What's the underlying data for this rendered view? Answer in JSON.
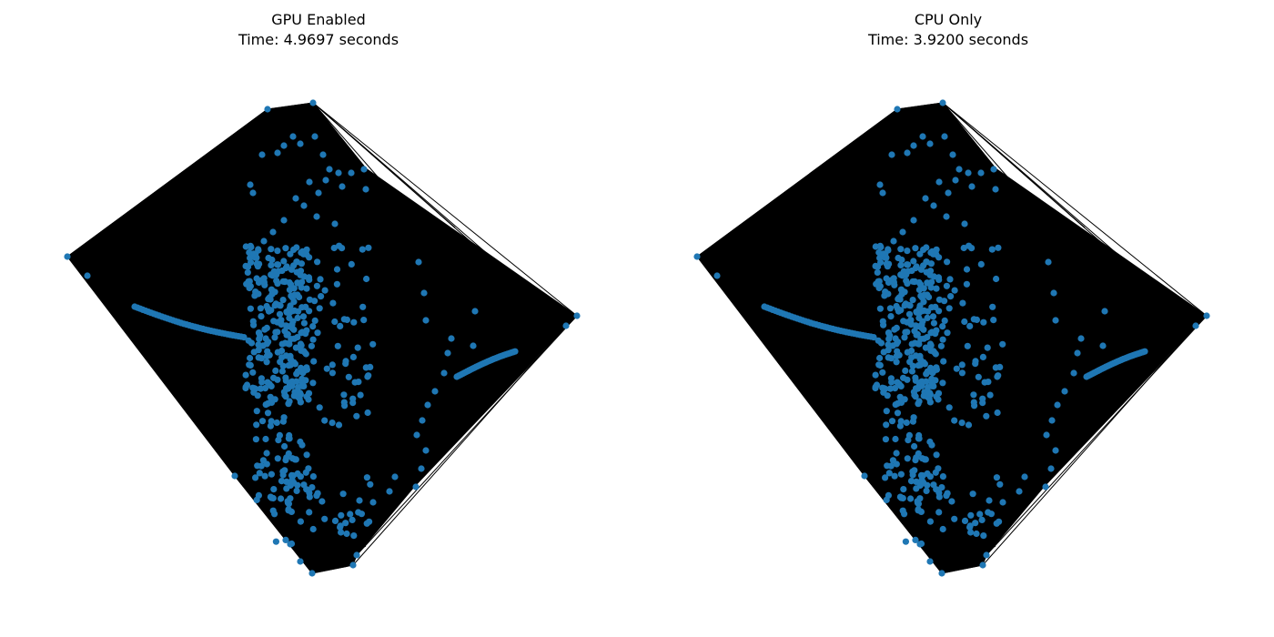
{
  "figure": {
    "panels": [
      {
        "name": "gpu",
        "title": "GPU Enabled",
        "subtitle": "Time: 4.9697 seconds",
        "mode": "GPU",
        "time_seconds": 4.9697
      },
      {
        "name": "cpu",
        "title": "CPU Only",
        "subtitle": "Time: 3.9200 seconds",
        "mode": "CPU",
        "time_seconds": 3.92
      }
    ],
    "colors": {
      "node": "#1f77b4",
      "edge": "#000000",
      "background": "#ffffff"
    }
  }
}
